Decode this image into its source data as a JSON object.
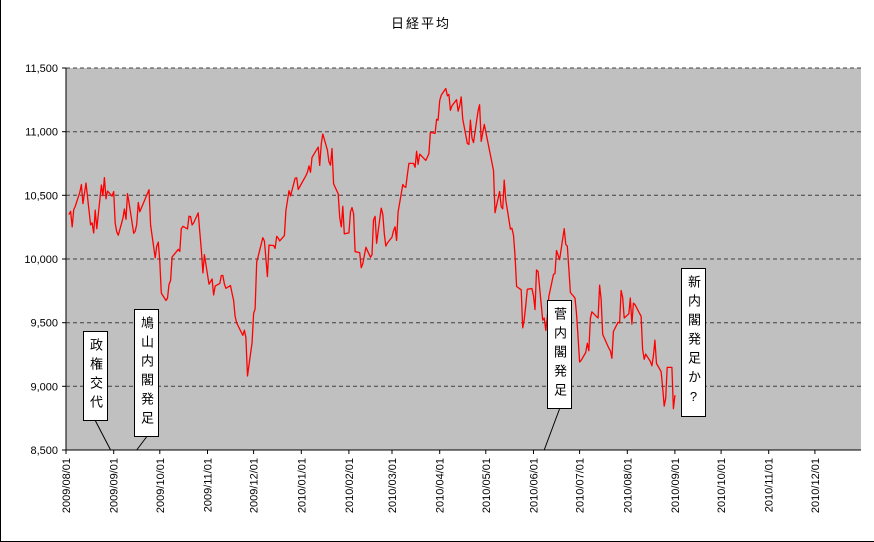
{
  "chart_data": {
    "type": "line",
    "title": "日経平均",
    "xlabel": "",
    "ylabel": "",
    "legend": "none",
    "grid": "horizontal-dashed",
    "plot_bg": "#C0C0C0",
    "ylim": [
      8500,
      11500
    ],
    "y_ticks": [
      8500,
      9000,
      9500,
      10000,
      10500,
      11000,
      11500
    ],
    "x_range": [
      "2009/08/01",
      "2010/12/31"
    ],
    "x_ticks": [
      "2009/08/01",
      "2009/09/01",
      "2009/10/01",
      "2009/11/01",
      "2009/12/01",
      "2010/01/01",
      "2010/02/01",
      "2010/03/01",
      "2010/04/01",
      "2010/05/01",
      "2010/06/01",
      "2010/07/01",
      "2010/08/01",
      "2010/09/01",
      "2010/10/01",
      "2010/11/01",
      "2010/12/01"
    ],
    "series": [
      {
        "name": "日経平均",
        "color": "#FF0000",
        "points": [
          [
            "2009/08/03",
            10352
          ],
          [
            "2009/08/04",
            10375
          ],
          [
            "2009/08/05",
            10252
          ],
          [
            "2009/08/06",
            10388
          ],
          [
            "2009/08/07",
            10412
          ],
          [
            "2009/08/10",
            10524
          ],
          [
            "2009/08/11",
            10585
          ],
          [
            "2009/08/12",
            10435
          ],
          [
            "2009/08/13",
            10517
          ],
          [
            "2009/08/14",
            10597
          ],
          [
            "2009/08/17",
            10268
          ],
          [
            "2009/08/18",
            10284
          ],
          [
            "2009/08/19",
            10204
          ],
          [
            "2009/08/20",
            10383
          ],
          [
            "2009/08/21",
            10238
          ],
          [
            "2009/08/24",
            10581
          ],
          [
            "2009/08/25",
            10497
          ],
          [
            "2009/08/26",
            10639
          ],
          [
            "2009/08/27",
            10473
          ],
          [
            "2009/08/28",
            10534
          ],
          [
            "2009/08/31",
            10493
          ],
          [
            "2009/09/01",
            10530
          ],
          [
            "2009/09/02",
            10280
          ],
          [
            "2009/09/03",
            10214
          ],
          [
            "2009/09/04",
            10187
          ],
          [
            "2009/09/07",
            10320
          ],
          [
            "2009/09/08",
            10393
          ],
          [
            "2009/09/09",
            10312
          ],
          [
            "2009/09/10",
            10513
          ],
          [
            "2009/09/11",
            10444
          ],
          [
            "2009/09/14",
            10202
          ],
          [
            "2009/09/15",
            10218
          ],
          [
            "2009/09/16",
            10270
          ],
          [
            "2009/09/17",
            10444
          ],
          [
            "2009/09/18",
            10371
          ],
          [
            "2009/09/24",
            10544
          ],
          [
            "2009/09/25",
            10266
          ],
          [
            "2009/09/28",
            10009
          ],
          [
            "2009/09/29",
            10100
          ],
          [
            "2009/09/30",
            10133
          ],
          [
            "2009/10/01",
            9979
          ],
          [
            "2009/10/02",
            9732
          ],
          [
            "2009/10/05",
            9674
          ],
          [
            "2009/10/06",
            9691
          ],
          [
            "2009/10/07",
            9799
          ],
          [
            "2009/10/08",
            9832
          ],
          [
            "2009/10/09",
            10016
          ],
          [
            "2009/10/13",
            10076
          ],
          [
            "2009/10/14",
            10060
          ],
          [
            "2009/10/15",
            10238
          ],
          [
            "2009/10/16",
            10257
          ],
          [
            "2009/10/19",
            10236
          ],
          [
            "2009/10/20",
            10336
          ],
          [
            "2009/10/21",
            10333
          ],
          [
            "2009/10/22",
            10267
          ],
          [
            "2009/10/23",
            10283
          ],
          [
            "2009/10/26",
            10362
          ],
          [
            "2009/10/27",
            10212
          ],
          [
            "2009/10/28",
            10075
          ],
          [
            "2009/10/29",
            9891
          ],
          [
            "2009/10/30",
            10034
          ],
          [
            "2009/11/02",
            9802
          ],
          [
            "2009/11/04",
            9844
          ],
          [
            "2009/11/05",
            9717
          ],
          [
            "2009/11/06",
            9789
          ],
          [
            "2009/11/09",
            9808
          ],
          [
            "2009/11/10",
            9870
          ],
          [
            "2009/11/11",
            9871
          ],
          [
            "2009/11/12",
            9804
          ],
          [
            "2009/11/13",
            9770
          ],
          [
            "2009/11/16",
            9791
          ],
          [
            "2009/11/17",
            9729
          ],
          [
            "2009/11/18",
            9676
          ],
          [
            "2009/11/19",
            9549
          ],
          [
            "2009/11/20",
            9497
          ],
          [
            "2009/11/24",
            9401
          ],
          [
            "2009/11/25",
            9441
          ],
          [
            "2009/11/26",
            9383
          ],
          [
            "2009/11/27",
            9081
          ],
          [
            "2009/11/30",
            9346
          ],
          [
            "2009/12/01",
            9572
          ],
          [
            "2009/12/02",
            9608
          ],
          [
            "2009/12/03",
            9977
          ],
          [
            "2009/12/04",
            10022
          ],
          [
            "2009/12/07",
            10167
          ],
          [
            "2009/12/08",
            10141
          ],
          [
            "2009/12/09",
            10004
          ],
          [
            "2009/12/10",
            9862
          ],
          [
            "2009/12/11",
            10108
          ],
          [
            "2009/12/14",
            10106
          ],
          [
            "2009/12/15",
            10083
          ],
          [
            "2009/12/16",
            10178
          ],
          [
            "2009/12/17",
            10164
          ],
          [
            "2009/12/18",
            10142
          ],
          [
            "2009/12/21",
            10184
          ],
          [
            "2009/12/22",
            10379
          ],
          [
            "2009/12/24",
            10536
          ],
          [
            "2009/12/25",
            10495
          ],
          [
            "2009/12/28",
            10634
          ],
          [
            "2009/12/29",
            10638
          ],
          [
            "2009/12/30",
            10546
          ],
          [
            "2010/01/04",
            10654
          ],
          [
            "2010/01/05",
            10681
          ],
          [
            "2010/01/06",
            10731
          ],
          [
            "2010/01/07",
            10681
          ],
          [
            "2010/01/08",
            10798
          ],
          [
            "2010/01/12",
            10879
          ],
          [
            "2010/01/13",
            10735
          ],
          [
            "2010/01/14",
            10907
          ],
          [
            "2010/01/15",
            10982
          ],
          [
            "2010/01/18",
            10855
          ],
          [
            "2010/01/19",
            10764
          ],
          [
            "2010/01/20",
            10737
          ],
          [
            "2010/01/21",
            10868
          ],
          [
            "2010/01/22",
            10590
          ],
          [
            "2010/01/25",
            10512
          ],
          [
            "2010/01/26",
            10325
          ],
          [
            "2010/01/27",
            10252
          ],
          [
            "2010/01/28",
            10414
          ],
          [
            "2010/01/29",
            10198
          ],
          [
            "2010/02/01",
            10205
          ],
          [
            "2010/02/02",
            10371
          ],
          [
            "2010/02/03",
            10404
          ],
          [
            "2010/02/04",
            10355
          ],
          [
            "2010/02/05",
            10057
          ],
          [
            "2010/02/08",
            10050
          ],
          [
            "2010/02/09",
            9932
          ],
          [
            "2010/02/10",
            9963
          ],
          [
            "2010/02/12",
            10092
          ],
          [
            "2010/02/15",
            10013
          ],
          [
            "2010/02/16",
            10034
          ],
          [
            "2010/02/17",
            10306
          ],
          [
            "2010/02/18",
            10335
          ],
          [
            "2010/02/19",
            10123
          ],
          [
            "2010/02/22",
            10400
          ],
          [
            "2010/02/23",
            10352
          ],
          [
            "2010/02/24",
            10198
          ],
          [
            "2010/02/25",
            10101
          ],
          [
            "2010/02/26",
            10126
          ],
          [
            "2010/03/01",
            10172
          ],
          [
            "2010/03/02",
            10222
          ],
          [
            "2010/03/03",
            10253
          ],
          [
            "2010/03/04",
            10145
          ],
          [
            "2010/03/05",
            10369
          ],
          [
            "2010/03/08",
            10585
          ],
          [
            "2010/03/09",
            10567
          ],
          [
            "2010/03/10",
            10563
          ],
          [
            "2010/03/11",
            10664
          ],
          [
            "2010/03/12",
            10751
          ],
          [
            "2010/03/15",
            10751
          ],
          [
            "2010/03/16",
            10721
          ],
          [
            "2010/03/17",
            10846
          ],
          [
            "2010/03/18",
            10744
          ],
          [
            "2010/03/19",
            10824
          ],
          [
            "2010/03/23",
            10774
          ],
          [
            "2010/03/24",
            10801
          ],
          [
            "2010/03/25",
            10828
          ],
          [
            "2010/03/26",
            10996
          ],
          [
            "2010/03/29",
            10986
          ],
          [
            "2010/03/30",
            11097
          ],
          [
            "2010/03/31",
            11090
          ],
          [
            "2010/04/01",
            11244
          ],
          [
            "2010/04/02",
            11286
          ],
          [
            "2010/04/05",
            11339
          ],
          [
            "2010/04/06",
            11282
          ],
          [
            "2010/04/07",
            11293
          ],
          [
            "2010/04/08",
            11168
          ],
          [
            "2010/04/09",
            11204
          ],
          [
            "2010/04/12",
            11251
          ],
          [
            "2010/04/13",
            11161
          ],
          [
            "2010/04/14",
            11204
          ],
          [
            "2010/04/15",
            11273
          ],
          [
            "2010/04/16",
            11102
          ],
          [
            "2010/04/19",
            10908
          ],
          [
            "2010/04/20",
            10900
          ],
          [
            "2010/04/21",
            11090
          ],
          [
            "2010/04/22",
            10949
          ],
          [
            "2010/04/23",
            10914
          ],
          [
            "2010/04/26",
            11165
          ],
          [
            "2010/04/27",
            11212
          ],
          [
            "2010/04/28",
            10924
          ],
          [
            "2010/04/30",
            11057
          ],
          [
            "2010/05/06",
            10695
          ],
          [
            "2010/05/07",
            10364
          ],
          [
            "2010/05/10",
            10530
          ],
          [
            "2010/05/11",
            10411
          ],
          [
            "2010/05/12",
            10394
          ],
          [
            "2010/05/13",
            10620
          ],
          [
            "2010/05/14",
            10462
          ],
          [
            "2010/05/17",
            10235
          ],
          [
            "2010/05/18",
            10242
          ],
          [
            "2010/05/19",
            10186
          ],
          [
            "2010/05/20",
            10030
          ],
          [
            "2010/05/21",
            9784
          ],
          [
            "2010/05/24",
            9758
          ],
          [
            "2010/05/25",
            9459
          ],
          [
            "2010/05/26",
            9522
          ],
          [
            "2010/05/27",
            9639
          ],
          [
            "2010/05/28",
            9762
          ],
          [
            "2010/05/31",
            9768
          ],
          [
            "2010/06/01",
            9711
          ],
          [
            "2010/06/02",
            9603
          ],
          [
            "2010/06/03",
            9914
          ],
          [
            "2010/06/04",
            9901
          ],
          [
            "2010/06/07",
            9520
          ],
          [
            "2010/06/08",
            9537
          ],
          [
            "2010/06/09",
            9439
          ],
          [
            "2010/06/10",
            9542
          ],
          [
            "2010/06/11",
            9705
          ],
          [
            "2010/06/14",
            9879
          ],
          [
            "2010/06/15",
            9887
          ],
          [
            "2010/06/16",
            10067
          ],
          [
            "2010/06/17",
            10030
          ],
          [
            "2010/06/18",
            9995
          ],
          [
            "2010/06/21",
            10238
          ],
          [
            "2010/06/22",
            10113
          ],
          [
            "2010/06/23",
            10101
          ],
          [
            "2010/06/24",
            9928
          ],
          [
            "2010/06/25",
            9737
          ],
          [
            "2010/06/28",
            9693
          ],
          [
            "2010/06/29",
            9571
          ],
          [
            "2010/06/30",
            9383
          ],
          [
            "2010/07/01",
            9191
          ],
          [
            "2010/07/02",
            9204
          ],
          [
            "2010/07/05",
            9266
          ],
          [
            "2010/07/06",
            9338
          ],
          [
            "2010/07/07",
            9279
          ],
          [
            "2010/07/08",
            9535
          ],
          [
            "2010/07/09",
            9585
          ],
          [
            "2010/07/12",
            9548
          ],
          [
            "2010/07/13",
            9537
          ],
          [
            "2010/07/14",
            9795
          ],
          [
            "2010/07/15",
            9685
          ],
          [
            "2010/07/16",
            9408
          ],
          [
            "2010/07/20",
            9300
          ],
          [
            "2010/07/21",
            9278
          ],
          [
            "2010/07/22",
            9220
          ],
          [
            "2010/07/23",
            9431
          ],
          [
            "2010/07/26",
            9503
          ],
          [
            "2010/07/27",
            9497
          ],
          [
            "2010/07/28",
            9753
          ],
          [
            "2010/07/29",
            9696
          ],
          [
            "2010/07/30",
            9537
          ],
          [
            "2010/08/02",
            9570
          ],
          [
            "2010/08/03",
            9694
          ],
          [
            "2010/08/04",
            9489
          ],
          [
            "2010/08/05",
            9654
          ],
          [
            "2010/08/06",
            9642
          ],
          [
            "2010/08/09",
            9572
          ],
          [
            "2010/08/10",
            9551
          ],
          [
            "2010/08/11",
            9292
          ],
          [
            "2010/08/12",
            9212
          ],
          [
            "2010/08/13",
            9253
          ],
          [
            "2010/08/16",
            9196
          ],
          [
            "2010/08/17",
            9161
          ],
          [
            "2010/08/18",
            9240
          ],
          [
            "2010/08/19",
            9362
          ],
          [
            "2010/08/20",
            9179
          ],
          [
            "2010/08/23",
            9116
          ],
          [
            "2010/08/24",
            8995
          ],
          [
            "2010/08/25",
            8845
          ],
          [
            "2010/08/26",
            8906
          ],
          [
            "2010/08/27",
            9149
          ],
          [
            "2010/08/30",
            9149
          ],
          [
            "2010/08/31",
            8824
          ],
          [
            "2010/09/01",
            8927
          ]
        ]
      }
    ],
    "annotations": [
      {
        "label": "政権交代",
        "pointer_date": "2009/08/30"
      },
      {
        "label": "鳩山内閣発足",
        "pointer_date": "2009/09/16"
      },
      {
        "label": "菅内閣発足",
        "pointer_date": "2010/06/08"
      },
      {
        "label": "新内閣発足か?",
        "pointer_date": null
      }
    ]
  }
}
